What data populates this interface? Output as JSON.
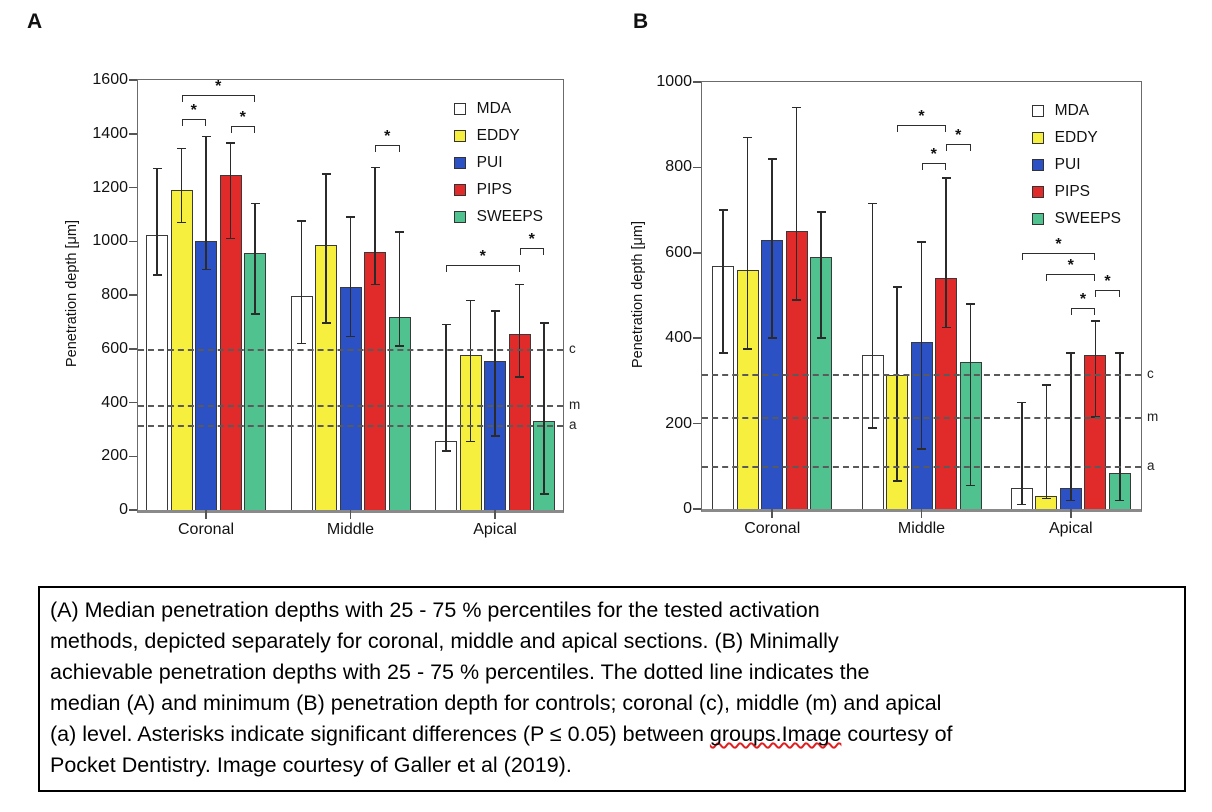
{
  "chart_data": [
    {
      "panel": "A",
      "type": "bar",
      "ylabel": "Penetration depth [μm]",
      "ylim": [
        0,
        1600
      ],
      "ytick_step": 200,
      "categories": [
        "Coronal",
        "Middle",
        "Apical"
      ],
      "series": [
        {
          "name": "MDA",
          "color": "#FFFFFF",
          "values": [
            1025,
            795,
            255
          ],
          "err_lo": [
            875,
            620,
            220
          ],
          "err_hi": [
            1270,
            1075,
            690
          ]
        },
        {
          "name": "EDDY",
          "color": "#F6EF3E",
          "values": [
            1190,
            985,
            575
          ],
          "err_lo": [
            1070,
            695,
            255
          ],
          "err_hi": [
            1345,
            1250,
            780
          ]
        },
        {
          "name": "PUI",
          "color": "#2B51C5",
          "values": [
            1000,
            830,
            555
          ],
          "err_lo": [
            895,
            645,
            275
          ],
          "err_hi": [
            1390,
            1090,
            740
          ]
        },
        {
          "name": "PIPS",
          "color": "#E12B2B",
          "values": [
            1245,
            960,
            655
          ],
          "err_lo": [
            1010,
            840,
            495
          ],
          "err_hi": [
            1365,
            1275,
            840
          ]
        },
        {
          "name": "SWEEPS",
          "color": "#4FC28F",
          "values": [
            955,
            720,
            330
          ],
          "err_lo": [
            730,
            610,
            60
          ],
          "err_hi": [
            1140,
            1035,
            695
          ]
        }
      ],
      "control_lines": [
        {
          "label": "c",
          "value": 600
        },
        {
          "label": "m",
          "value": 390
        },
        {
          "label": "a",
          "value": 315
        }
      ],
      "brackets": [
        {
          "category": 0,
          "from": 1,
          "to": 4,
          "level": 1545
        },
        {
          "category": 0,
          "from": 1,
          "to": 2,
          "level": 1455
        },
        {
          "category": 0,
          "from": 3,
          "to": 4,
          "level": 1430
        },
        {
          "category": 1,
          "from": 3,
          "to": 4,
          "level": 1360
        },
        {
          "category": 2,
          "from": 0,
          "to": 3,
          "level": 910
        },
        {
          "category": 2,
          "from": 3,
          "to": 4,
          "level": 975
        }
      ],
      "legend": [
        "MDA",
        "EDDY",
        "PUI",
        "PIPS",
        "SWEEPS"
      ]
    },
    {
      "panel": "B",
      "type": "bar",
      "ylabel": "Penetration depth [μm]",
      "ylim": [
        0,
        1000
      ],
      "ytick_step": 200,
      "categories": [
        "Coronal",
        "Middle",
        "Apical"
      ],
      "series": [
        {
          "name": "MDA",
          "color": "#FFFFFF",
          "values": [
            570,
            360,
            50
          ],
          "err_lo": [
            365,
            190,
            10
          ],
          "err_hi": [
            700,
            715,
            250
          ]
        },
        {
          "name": "EDDY",
          "color": "#F6EF3E",
          "values": [
            560,
            315,
            30
          ],
          "err_lo": [
            375,
            65,
            25
          ],
          "err_hi": [
            870,
            520,
            290
          ]
        },
        {
          "name": "PUI",
          "color": "#2B51C5",
          "values": [
            630,
            390,
            50
          ],
          "err_lo": [
            400,
            140,
            20
          ],
          "err_hi": [
            820,
            625,
            365
          ]
        },
        {
          "name": "PIPS",
          "color": "#E12B2B",
          "values": [
            650,
            540,
            360
          ],
          "err_lo": [
            490,
            425,
            215
          ],
          "err_hi": [
            940,
            775,
            440
          ]
        },
        {
          "name": "SWEEPS",
          "color": "#4FC28F",
          "values": [
            590,
            345,
            85
          ],
          "err_lo": [
            400,
            55,
            20
          ],
          "err_hi": [
            695,
            480,
            365
          ]
        }
      ],
      "control_lines": [
        {
          "label": "c",
          "value": 315
        },
        {
          "label": "m",
          "value": 215
        },
        {
          "label": "a",
          "value": 100
        }
      ],
      "brackets": [
        {
          "category": 1,
          "from": 1,
          "to": 3,
          "level": 900
        },
        {
          "category": 1,
          "from": 2,
          "to": 3,
          "level": 810
        },
        {
          "category": 1,
          "from": 3,
          "to": 4,
          "level": 855
        },
        {
          "category": 2,
          "from": 0,
          "to": 3,
          "level": 600
        },
        {
          "category": 2,
          "from": 1,
          "to": 3,
          "level": 550
        },
        {
          "category": 2,
          "from": 2,
          "to": 3,
          "level": 470
        },
        {
          "category": 2,
          "from": 3,
          "to": 4,
          "level": 512
        }
      ],
      "legend": [
        "MDA",
        "EDDY",
        "PUI",
        "PIPS",
        "SWEEPS"
      ]
    }
  ],
  "caption": {
    "lines": [
      "(A) Median penetration depths with 25 - 75 % percentiles for the tested activation",
      "methods, depicted separately for coronal, middle and apical sections. (B) Minimally",
      "achievable penetration depths with 25 - 75 % percentiles. The dotted line indicates the",
      "median (A) and minimum (B) penetration depth for controls; coronal (c), middle (m) and apical"
    ],
    "line5": {
      "before": "(a) level. Asterisks indicate significant differences (P ≤ 0.05) between ",
      "squiggle": "groups.Image",
      "after": " courtesy of"
    },
    "line6": "Pocket Dentistry. Image courtesy of Galler et al (2019)."
  }
}
